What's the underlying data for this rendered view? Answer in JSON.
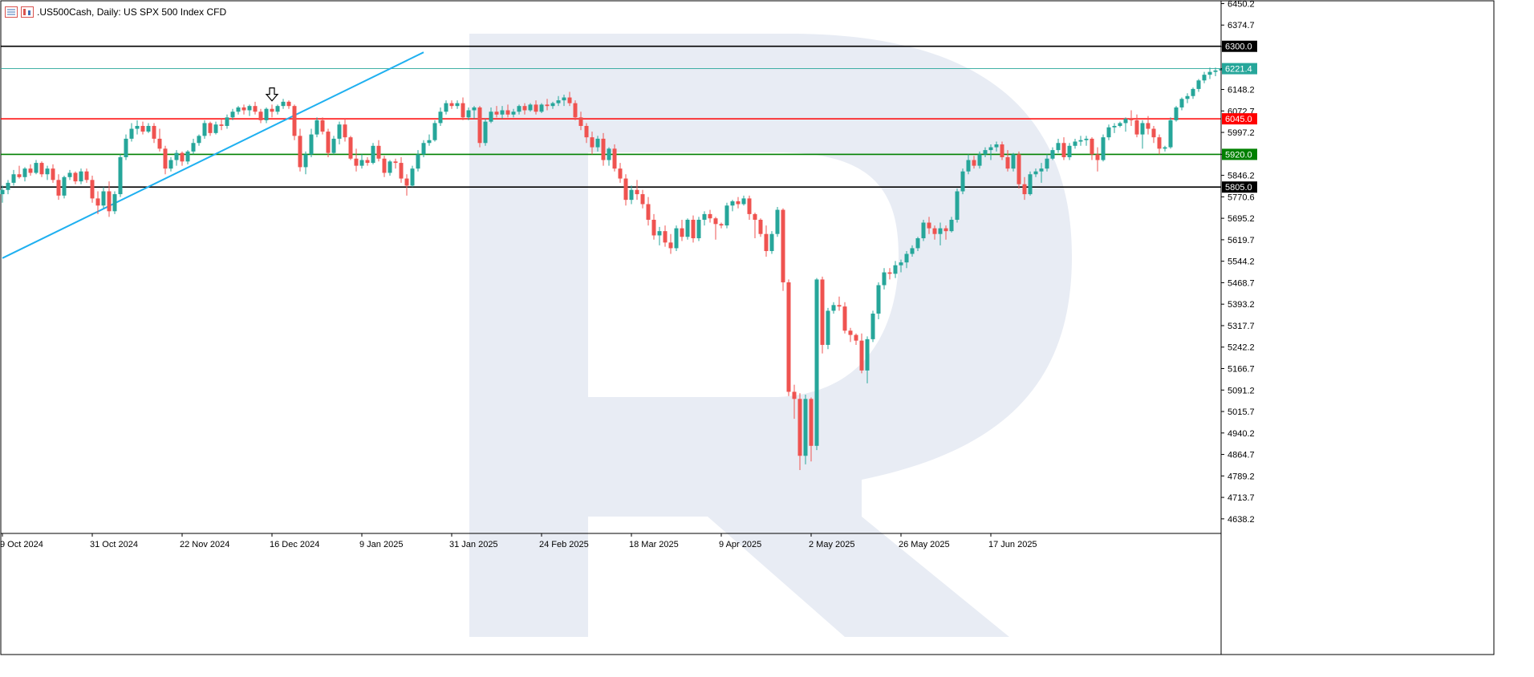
{
  "header": {
    "symbol_label": ".US500Cash, Daily:  US SPX 500 Index CFD",
    "icons": [
      "bar-chart-icon",
      "candlestick-icon"
    ]
  },
  "colors": {
    "bull": "#26a69a",
    "bear": "#ef5350",
    "support_green": "#008000",
    "resistance_red": "#ff0000",
    "level_black": "#000000",
    "current_price": "#26a69a",
    "trendline": "#1fb0f0",
    "watermark": "#e8ecf4"
  },
  "chart_data": {
    "type": "candlestick",
    "title": ".US500Cash, Daily:  US SPX 500 Index CFD",
    "xlabel": "",
    "ylabel": "",
    "ylim": [
      4587,
      6460
    ],
    "y_ticks": [
      "6450.2",
      "6374.7",
      "6299.2",
      "6221.4",
      "6148.2",
      "6072.7",
      "5997.2",
      "5920.0",
      "5846.2",
      "5770.6",
      "5695.2",
      "5619.7",
      "5544.2",
      "5468.7",
      "5393.2",
      "5317.7",
      "5242.2",
      "5166.7",
      "5091.2",
      "5015.7",
      "4940.2",
      "4864.7",
      "4789.2",
      "4713.7",
      "4638.2"
    ],
    "x_ticks": [
      "9 Oct 2024",
      "31 Oct 2024",
      "22 Nov 2024",
      "16 Dec 2024",
      "9 Jan 2025",
      "31 Jan 2025",
      "24 Feb 2025",
      "18 Mar 2025",
      "9 Apr 2025",
      "2 May 2025",
      "26 May 2025",
      "17 Jun 2025"
    ],
    "x_tick_index": [
      0,
      16,
      32,
      48,
      64,
      80,
      96,
      112,
      128,
      144,
      160,
      176
    ],
    "horizontal_levels": [
      {
        "price": 6300.0,
        "label": "6300.0",
        "color": "#000000"
      },
      {
        "price": 6045.0,
        "label": "6045.0",
        "color": "#ff0000"
      },
      {
        "price": 5920.0,
        "label": "5920.0",
        "color": "#008000"
      },
      {
        "price": 5805.0,
        "label": "5805.0",
        "color": "#000000"
      }
    ],
    "current_price": {
      "price": 6221.4,
      "label": "6221.4"
    },
    "trendline": {
      "start": {
        "index": 0,
        "price": 5555
      },
      "end": {
        "index": 75,
        "price": 6279
      }
    },
    "marker": {
      "type": "down-arrow",
      "index": 48,
      "price": 6114
    },
    "candles": [
      [
        5780,
        5810,
        5750,
        5795
      ],
      [
        5795,
        5830,
        5780,
        5820
      ],
      [
        5820,
        5865,
        5810,
        5850
      ],
      [
        5850,
        5880,
        5835,
        5840
      ],
      [
        5840,
        5875,
        5825,
        5870
      ],
      [
        5870,
        5885,
        5845,
        5855
      ],
      [
        5855,
        5900,
        5850,
        5890
      ],
      [
        5890,
        5895,
        5840,
        5850
      ],
      [
        5850,
        5880,
        5830,
        5870
      ],
      [
        5870,
        5885,
        5820,
        5830
      ],
      [
        5830,
        5850,
        5760,
        5775
      ],
      [
        5775,
        5845,
        5765,
        5840
      ],
      [
        5840,
        5865,
        5830,
        5855
      ],
      [
        5855,
        5860,
        5815,
        5825
      ],
      [
        5825,
        5870,
        5815,
        5860
      ],
      [
        5860,
        5870,
        5820,
        5830
      ],
      [
        5830,
        5845,
        5750,
        5765
      ],
      [
        5765,
        5790,
        5710,
        5740
      ],
      [
        5740,
        5805,
        5730,
        5790
      ],
      [
        5790,
        5825,
        5700,
        5720
      ],
      [
        5720,
        5790,
        5710,
        5780
      ],
      [
        5780,
        5920,
        5770,
        5910
      ],
      [
        5910,
        5990,
        5900,
        5975
      ],
      [
        5975,
        6030,
        5965,
        6010
      ],
      [
        6010,
        6040,
        5990,
        6020
      ],
      [
        6020,
        6035,
        5990,
        6000
      ],
      [
        6000,
        6030,
        5995,
        6020
      ],
      [
        6020,
        6030,
        5960,
        5975
      ],
      [
        5975,
        6010,
        5930,
        5940
      ],
      [
        5940,
        5950,
        5850,
        5870
      ],
      [
        5870,
        5910,
        5860,
        5900
      ],
      [
        5900,
        5935,
        5880,
        5925
      ],
      [
        5925,
        5930,
        5880,
        5895
      ],
      [
        5895,
        5935,
        5885,
        5930
      ],
      [
        5930,
        5975,
        5920,
        5960
      ],
      [
        5960,
        5990,
        5950,
        5985
      ],
      [
        5985,
        6040,
        5975,
        6030
      ],
      [
        6030,
        6035,
        5985,
        5995
      ],
      [
        5995,
        6035,
        5990,
        6025
      ],
      [
        6025,
        6045,
        6005,
        6020
      ],
      [
        6020,
        6060,
        6010,
        6050
      ],
      [
        6050,
        6080,
        6040,
        6070
      ],
      [
        6070,
        6090,
        6060,
        6085
      ],
      [
        6085,
        6095,
        6060,
        6075
      ],
      [
        6075,
        6095,
        6055,
        6090
      ],
      [
        6090,
        6105,
        6060,
        6070
      ],
      [
        6070,
        6080,
        6030,
        6040
      ],
      [
        6040,
        6085,
        6030,
        6080
      ],
      [
        6080,
        6095,
        6050,
        6070
      ],
      [
        6070,
        6095,
        6060,
        6090
      ],
      [
        6090,
        6115,
        6080,
        6105
      ],
      [
        6105,
        6110,
        6080,
        6090
      ],
      [
        6090,
        6095,
        5970,
        5985
      ],
      [
        5985,
        6010,
        5860,
        5875
      ],
      [
        5875,
        5930,
        5850,
        5920
      ],
      [
        5920,
        6010,
        5910,
        5990
      ],
      [
        5990,
        6050,
        5980,
        6040
      ],
      [
        6040,
        6050,
        5990,
        6000
      ],
      [
        6000,
        6010,
        5910,
        5925
      ],
      [
        5925,
        5985,
        5920,
        5975
      ],
      [
        5975,
        6035,
        5955,
        6025
      ],
      [
        6025,
        6045,
        5965,
        5980
      ],
      [
        5980,
        5985,
        5900,
        5905
      ],
      [
        5905,
        5940,
        5860,
        5880
      ],
      [
        5880,
        5920,
        5870,
        5900
      ],
      [
        5900,
        5910,
        5880,
        5890
      ],
      [
        5890,
        5960,
        5885,
        5950
      ],
      [
        5950,
        5970,
        5895,
        5905
      ],
      [
        5905,
        5915,
        5840,
        5855
      ],
      [
        5855,
        5900,
        5845,
        5895
      ],
      [
        5895,
        5905,
        5870,
        5890
      ],
      [
        5890,
        5910,
        5820,
        5835
      ],
      [
        5835,
        5850,
        5775,
        5810
      ],
      [
        5810,
        5880,
        5805,
        5870
      ],
      [
        5870,
        5935,
        5860,
        5920
      ],
      [
        5920,
        5970,
        5910,
        5960
      ],
      [
        5960,
        5990,
        5950,
        5970
      ],
      [
        5970,
        6040,
        5965,
        6030
      ],
      [
        6030,
        6085,
        6020,
        6070
      ],
      [
        6070,
        6110,
        6060,
        6100
      ],
      [
        6100,
        6110,
        6080,
        6090
      ],
      [
        6090,
        6110,
        6080,
        6100
      ],
      [
        6100,
        6120,
        6040,
        6050
      ],
      [
        6050,
        6085,
        6040,
        6075
      ],
      [
        6075,
        6090,
        6045,
        6085
      ],
      [
        6085,
        6090,
        5945,
        5960
      ],
      [
        5960,
        6045,
        5950,
        6035
      ],
      [
        6035,
        6085,
        6030,
        6070
      ],
      [
        6070,
        6090,
        6050,
        6060
      ],
      [
        6060,
        6090,
        6045,
        6075
      ],
      [
        6075,
        6095,
        6050,
        6060
      ],
      [
        6060,
        6080,
        6050,
        6070
      ],
      [
        6070,
        6095,
        6060,
        6090
      ],
      [
        6090,
        6100,
        6060,
        6075
      ],
      [
        6075,
        6100,
        6070,
        6095
      ],
      [
        6095,
        6110,
        6060,
        6070
      ],
      [
        6070,
        6100,
        6065,
        6095
      ],
      [
        6095,
        6115,
        6075,
        6090
      ],
      [
        6090,
        6105,
        6080,
        6100
      ],
      [
        6100,
        6125,
        6090,
        6110
      ],
      [
        6110,
        6130,
        6090,
        6120
      ],
      [
        6120,
        6140,
        6090,
        6100
      ],
      [
        6100,
        6110,
        6040,
        6050
      ],
      [
        6050,
        6070,
        6005,
        6020
      ],
      [
        6020,
        6030,
        5960,
        5980
      ],
      [
        5980,
        6000,
        5920,
        5945
      ],
      [
        5945,
        5985,
        5930,
        5975
      ],
      [
        5975,
        5995,
        5880,
        5900
      ],
      [
        5900,
        5945,
        5880,
        5940
      ],
      [
        5940,
        5955,
        5860,
        5870
      ],
      [
        5870,
        5890,
        5820,
        5835
      ],
      [
        5835,
        5850,
        5740,
        5760
      ],
      [
        5760,
        5810,
        5745,
        5795
      ],
      [
        5795,
        5830,
        5760,
        5780
      ],
      [
        5780,
        5795,
        5730,
        5745
      ],
      [
        5745,
        5770,
        5670,
        5690
      ],
      [
        5690,
        5710,
        5620,
        5635
      ],
      [
        5635,
        5665,
        5600,
        5650
      ],
      [
        5650,
        5670,
        5595,
        5610
      ],
      [
        5610,
        5640,
        5570,
        5590
      ],
      [
        5590,
        5670,
        5580,
        5660
      ],
      [
        5660,
        5690,
        5615,
        5630
      ],
      [
        5630,
        5695,
        5620,
        5690
      ],
      [
        5690,
        5705,
        5610,
        5625
      ],
      [
        5625,
        5700,
        5615,
        5690
      ],
      [
        5690,
        5720,
        5670,
        5710
      ],
      [
        5710,
        5725,
        5680,
        5695
      ],
      [
        5695,
        5700,
        5620,
        5675
      ],
      [
        5675,
        5680,
        5660,
        5670
      ],
      [
        5670,
        5750,
        5660,
        5740
      ],
      [
        5740,
        5760,
        5720,
        5755
      ],
      [
        5755,
        5770,
        5730,
        5745
      ],
      [
        5745,
        5775,
        5740,
        5765
      ],
      [
        5765,
        5775,
        5690,
        5710
      ],
      [
        5710,
        5715,
        5625,
        5690
      ],
      [
        5690,
        5695,
        5630,
        5640
      ],
      [
        5640,
        5670,
        5560,
        5580
      ],
      [
        5580,
        5650,
        5570,
        5640
      ],
      [
        5640,
        5735,
        5630,
        5725
      ],
      [
        5725,
        5730,
        5440,
        5470
      ],
      [
        5470,
        5480,
        5070,
        5085
      ],
      [
        5085,
        5110,
        4990,
        5060
      ],
      [
        5060,
        5080,
        4810,
        4860
      ],
      [
        4860,
        5075,
        4830,
        5060
      ],
      [
        5060,
        5065,
        4840,
        4895
      ],
      [
        4895,
        5485,
        4880,
        5480
      ],
      [
        5480,
        5490,
        5220,
        5250
      ],
      [
        5250,
        5380,
        5235,
        5370
      ],
      [
        5370,
        5400,
        5360,
        5390
      ],
      [
        5390,
        5420,
        5370,
        5385
      ],
      [
        5385,
        5400,
        5290,
        5300
      ],
      [
        5300,
        5310,
        5260,
        5285
      ],
      [
        5285,
        5290,
        5250,
        5265
      ],
      [
        5265,
        5290,
        5150,
        5160
      ],
      [
        5160,
        5280,
        5115,
        5270
      ],
      [
        5270,
        5370,
        5260,
        5360
      ],
      [
        5360,
        5470,
        5340,
        5460
      ],
      [
        5460,
        5520,
        5445,
        5505
      ],
      [
        5505,
        5520,
        5480,
        5500
      ],
      [
        5500,
        5545,
        5485,
        5530
      ],
      [
        5530,
        5550,
        5505,
        5540
      ],
      [
        5540,
        5580,
        5520,
        5570
      ],
      [
        5570,
        5600,
        5560,
        5590
      ],
      [
        5590,
        5630,
        5580,
        5625
      ],
      [
        5625,
        5690,
        5615,
        5680
      ],
      [
        5680,
        5700,
        5640,
        5660
      ],
      [
        5660,
        5670,
        5620,
        5640
      ],
      [
        5640,
        5680,
        5600,
        5660
      ],
      [
        5660,
        5670,
        5620,
        5650
      ],
      [
        5650,
        5700,
        5645,
        5690
      ],
      [
        5690,
        5800,
        5680,
        5790
      ],
      [
        5790,
        5870,
        5780,
        5860
      ],
      [
        5860,
        5920,
        5850,
        5900
      ],
      [
        5900,
        5915,
        5870,
        5880
      ],
      [
        5880,
        5930,
        5870,
        5920
      ],
      [
        5920,
        5945,
        5910,
        5935
      ],
      [
        5935,
        5955,
        5900,
        5945
      ],
      [
        5945,
        5965,
        5930,
        5955
      ],
      [
        5955,
        5965,
        5900,
        5910
      ],
      [
        5910,
        5935,
        5860,
        5870
      ],
      [
        5870,
        5925,
        5860,
        5920
      ],
      [
        5920,
        5930,
        5800,
        5815
      ],
      [
        5815,
        5840,
        5760,
        5780
      ],
      [
        5780,
        5860,
        5775,
        5850
      ],
      [
        5850,
        5870,
        5840,
        5860
      ],
      [
        5860,
        5890,
        5820,
        5870
      ],
      [
        5870,
        5920,
        5860,
        5905
      ],
      [
        5905,
        5945,
        5900,
        5935
      ],
      [
        5935,
        5975,
        5925,
        5960
      ],
      [
        5960,
        5980,
        5900,
        5910
      ],
      [
        5910,
        5960,
        5900,
        5950
      ],
      [
        5950,
        5975,
        5940,
        5965
      ],
      [
        5965,
        5985,
        5950,
        5970
      ],
      [
        5970,
        5985,
        5950,
        5975
      ],
      [
        5975,
        5980,
        5900,
        5920
      ],
      [
        5920,
        5945,
        5860,
        5900
      ],
      [
        5900,
        5990,
        5895,
        5980
      ],
      [
        5980,
        6025,
        5970,
        6015
      ],
      [
        6015,
        6030,
        5995,
        6020
      ],
      [
        6020,
        6035,
        6015,
        6030
      ],
      [
        6030,
        6050,
        6000,
        6045
      ],
      [
        6045,
        6075,
        6020,
        6040
      ],
      [
        6040,
        6060,
        5980,
        5990
      ],
      [
        5990,
        6040,
        5940,
        6030
      ],
      [
        6030,
        6055,
        5990,
        6010
      ],
      [
        6010,
        6020,
        5960,
        5980
      ],
      [
        5980,
        5990,
        5920,
        5940
      ],
      [
        5940,
        5950,
        5930,
        5945
      ],
      [
        5945,
        6050,
        5940,
        6040
      ],
      [
        6040,
        6090,
        6035,
        6085
      ],
      [
        6085,
        6120,
        6075,
        6115
      ],
      [
        6115,
        6135,
        6100,
        6125
      ],
      [
        6125,
        6155,
        6115,
        6150
      ],
      [
        6150,
        6185,
        6140,
        6180
      ],
      [
        6180,
        6210,
        6170,
        6200
      ],
      [
        6200,
        6225,
        6185,
        6210
      ],
      [
        6210,
        6225,
        6195,
        6215
      ],
      [
        6215,
        6230,
        6200,
        6221.4
      ]
    ]
  }
}
